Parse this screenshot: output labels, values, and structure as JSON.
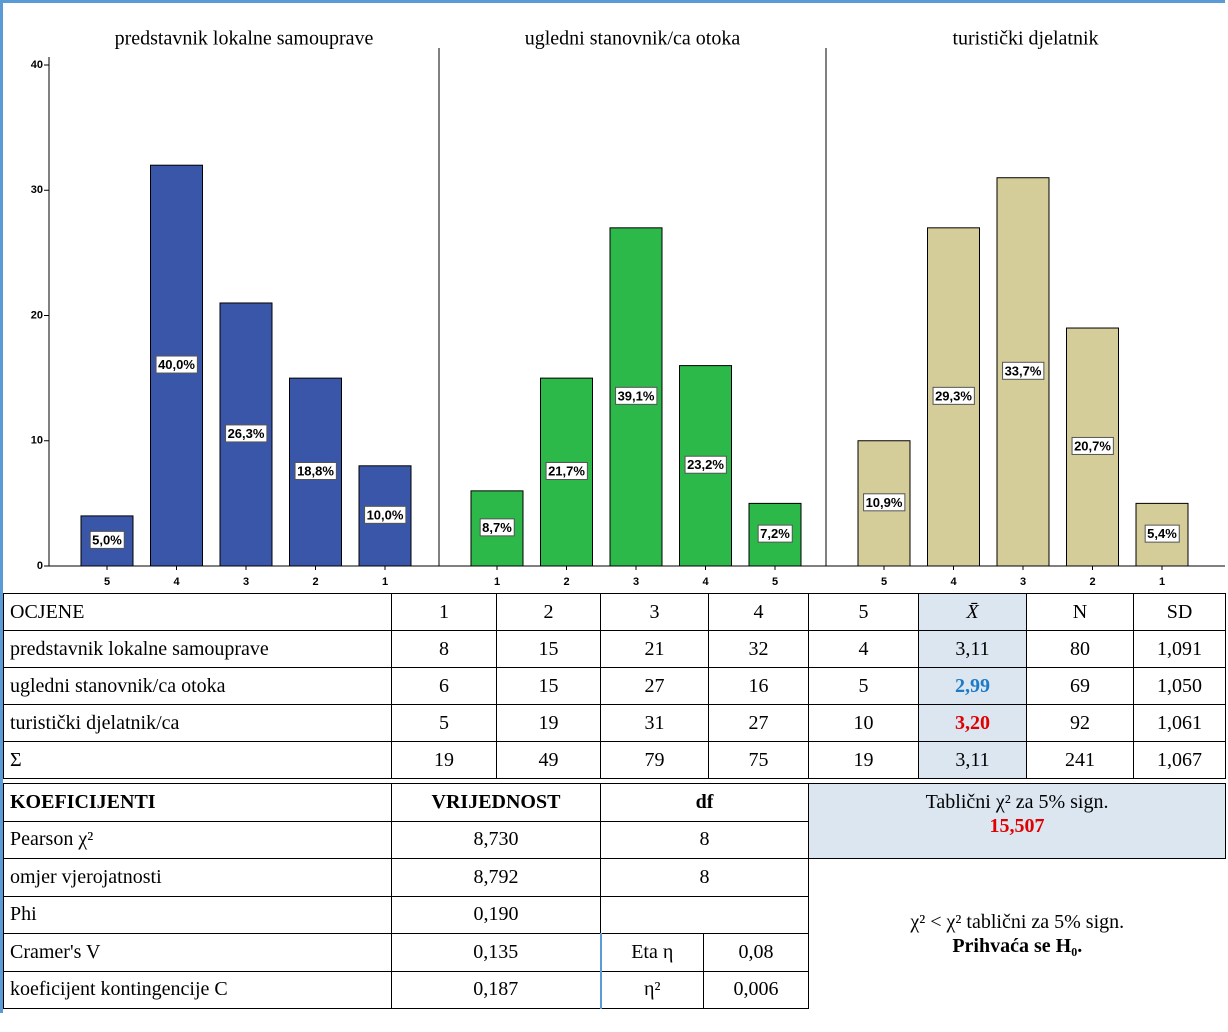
{
  "chart_data": {
    "type": "bar",
    "ylim": [
      0,
      40
    ],
    "yticks": [
      0,
      10,
      20,
      30,
      40
    ],
    "panels": [
      {
        "title": "predstavnik lokalne samouprave",
        "color": "#3a56a8",
        "categories": [
          "5",
          "4",
          "3",
          "2",
          "1"
        ],
        "values": [
          4,
          32,
          21,
          15,
          8
        ],
        "labels": [
          "5,0%",
          "40,0%",
          "26,3%",
          "18,8%",
          "10,0%"
        ]
      },
      {
        "title": "ugledni stanovnik/ca otoka",
        "color": "#2db84a",
        "categories": [
          "1",
          "2",
          "3",
          "4",
          "5"
        ],
        "values": [
          6,
          15,
          27,
          16,
          5
        ],
        "labels": [
          "8,7%",
          "21,7%",
          "39,1%",
          "23,2%",
          "7,2%"
        ]
      },
      {
        "title": "turistički djelatnik",
        "color": "#d4cc99",
        "categories": [
          "5",
          "4",
          "3",
          "2",
          "1"
        ],
        "values": [
          10,
          27,
          31,
          19,
          5
        ],
        "labels": [
          "10,9%",
          "29,3%",
          "33,7%",
          "20,7%",
          "5,4%"
        ]
      }
    ]
  },
  "table": {
    "header": [
      "OCJENE",
      "1",
      "2",
      "3",
      "4",
      "5",
      "X̄",
      "N",
      "SD"
    ],
    "rows": [
      [
        "predstavnik lokalne samouprave",
        "8",
        "15",
        "21",
        "32",
        "4",
        "3,11",
        "80",
        "1,091"
      ],
      [
        "ugledni stanovnik/ca otoka",
        "6",
        "15",
        "27",
        "16",
        "5",
        "2,99",
        "69",
        "1,050"
      ],
      [
        "turistički djelatnik/ca",
        "5",
        "19",
        "31",
        "27",
        "10",
        "3,20",
        "92",
        "1,061"
      ],
      [
        "Σ",
        "19",
        "49",
        "79",
        "75",
        "19",
        "3,11",
        "241",
        "1,067"
      ]
    ]
  },
  "coefficients": {
    "header": [
      "KOEFICIJENTI",
      "VRIJEDNOST",
      "df"
    ],
    "rows": [
      [
        "Pearson χ²",
        "8,730",
        "8"
      ],
      [
        "omjer vjerojatnosti",
        "8,792",
        "8"
      ],
      [
        "Phi",
        "0,190"
      ],
      [
        "Cramer's V",
        "0,135",
        "Eta η",
        "0,08"
      ],
      [
        "koeficijent kontingencije C",
        "0,187",
        "η²",
        "0,006"
      ]
    ]
  },
  "critical": {
    "text": "Tablični χ² za 5% sign.",
    "value": "15,507"
  },
  "conclusion": {
    "text": "χ² < χ² tablični za 5% sign.",
    "result": "Prihvaća se H₀."
  }
}
